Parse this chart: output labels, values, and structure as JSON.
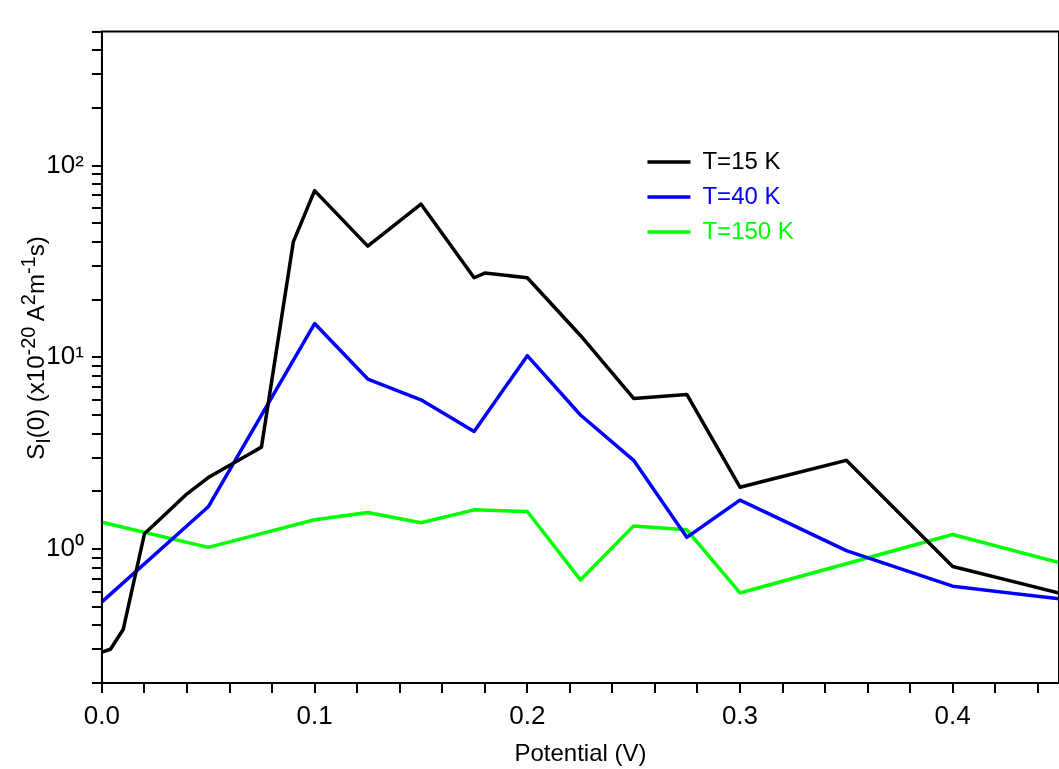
{
  "chart_data": {
    "type": "line",
    "xlabel": "Potential (V)",
    "ylabel": "S$_{I}$(0) (x10$^{-20}$ A$^{2}$m$^{-1}$s)",
    "log": "y",
    "xlim": [
      0,
      0.45
    ],
    "ylim": [
      0.2,
      500
    ],
    "xticks": [
      {
        "value": 0,
        "label": "0.0"
      },
      {
        "value": 0.02,
        "label": null
      },
      {
        "value": 0.04,
        "label": null
      },
      {
        "value": 0.06,
        "label": null
      },
      {
        "value": 0.08,
        "label": null
      },
      {
        "value": 0.1,
        "label": "0.1"
      },
      {
        "value": 0.12,
        "label": null
      },
      {
        "value": 0.14,
        "label": null
      },
      {
        "value": 0.16,
        "label": null
      },
      {
        "value": 0.18,
        "label": null
      },
      {
        "value": 0.2,
        "label": "0.2"
      },
      {
        "value": 0.22,
        "label": null
      },
      {
        "value": 0.24,
        "label": null
      },
      {
        "value": 0.26,
        "label": null
      },
      {
        "value": 0.28,
        "label": null
      },
      {
        "value": 0.3,
        "label": "0.3"
      },
      {
        "value": 0.32,
        "label": null
      },
      {
        "value": 0.34,
        "label": null
      },
      {
        "value": 0.36,
        "label": null
      },
      {
        "value": 0.38,
        "label": null
      },
      {
        "value": 0.4,
        "label": "0.4"
      },
      {
        "value": 0.42,
        "label": null
      },
      {
        "value": 0.44,
        "label": null
      }
    ],
    "yticks": [
      {
        "value": 0.2,
        "label": null
      },
      {
        "value": 0.3,
        "label": null
      },
      {
        "value": 0.4,
        "label": null
      },
      {
        "value": 0.5,
        "label": null
      },
      {
        "value": 0.6,
        "label": null
      },
      {
        "value": 0.7,
        "label": null
      },
      {
        "value": 0.8,
        "label": null
      },
      {
        "value": 0.9,
        "label": null
      },
      {
        "value": 1,
        "label": "10⁰"
      },
      {
        "value": 2,
        "label": null
      },
      {
        "value": 3,
        "label": null
      },
      {
        "value": 4,
        "label": null
      },
      {
        "value": 5,
        "label": null
      },
      {
        "value": 6,
        "label": null
      },
      {
        "value": 7,
        "label": null
      },
      {
        "value": 8,
        "label": null
      },
      {
        "value": 9,
        "label": null
      },
      {
        "value": 10,
        "label": "10¹"
      },
      {
        "value": 20,
        "label": null
      },
      {
        "value": 30,
        "label": null
      },
      {
        "value": 40,
        "label": null
      },
      {
        "value": 50,
        "label": null
      },
      {
        "value": 60,
        "label": null
      },
      {
        "value": 70,
        "label": null
      },
      {
        "value": 80,
        "label": null
      },
      {
        "value": 90,
        "label": null
      },
      {
        "value": 100,
        "label": "10²"
      },
      {
        "value": 200,
        "label": null
      },
      {
        "value": 300,
        "label": null
      },
      {
        "value": 400,
        "label": null
      },
      {
        "value": 500,
        "label": null
      }
    ],
    "grid": false,
    "legend": "top right",
    "marker": "none",
    "line_style": "solid",
    "series": [
      {
        "name": "T=15 K",
        "color": "#000000",
        "x": [
          0,
          0.004,
          0.01,
          0.02,
          0.04,
          0.05,
          0.075,
          0.09,
          0.1,
          0.125,
          0.15,
          0.175,
          0.18,
          0.2,
          0.225,
          0.25,
          0.275,
          0.3,
          0.35,
          0.4,
          0.45
        ],
        "values": [
          0.29,
          0.3,
          0.38,
          1.2,
          1.94,
          2.36,
          3.4,
          40,
          74,
          38,
          63,
          26,
          27.5,
          26,
          13,
          6.1,
          6.4,
          2.1,
          2.9,
          0.81,
          0.59
        ]
      },
      {
        "name": "T=40 K",
        "color": "#0000ff",
        "x": [
          0,
          0.05,
          0.1,
          0.125,
          0.15,
          0.175,
          0.2,
          0.225,
          0.25,
          0.275,
          0.3,
          0.35,
          0.4,
          0.45
        ],
        "values": [
          0.53,
          1.66,
          15,
          7.7,
          6,
          4.1,
          10.2,
          5,
          2.9,
          1.15,
          1.8,
          0.98,
          0.64,
          0.55
        ]
      },
      {
        "name": "T=150 K",
        "color": "#00ff00",
        "x": [
          0,
          0.05,
          0.1,
          0.125,
          0.15,
          0.175,
          0.2,
          0.225,
          0.25,
          0.275,
          0.3,
          0.4,
          0.45
        ],
        "values": [
          1.38,
          1.02,
          1.42,
          1.55,
          1.37,
          1.6,
          1.57,
          0.69,
          1.32,
          1.26,
          0.59,
          1.19,
          0.85
        ]
      }
    ]
  }
}
